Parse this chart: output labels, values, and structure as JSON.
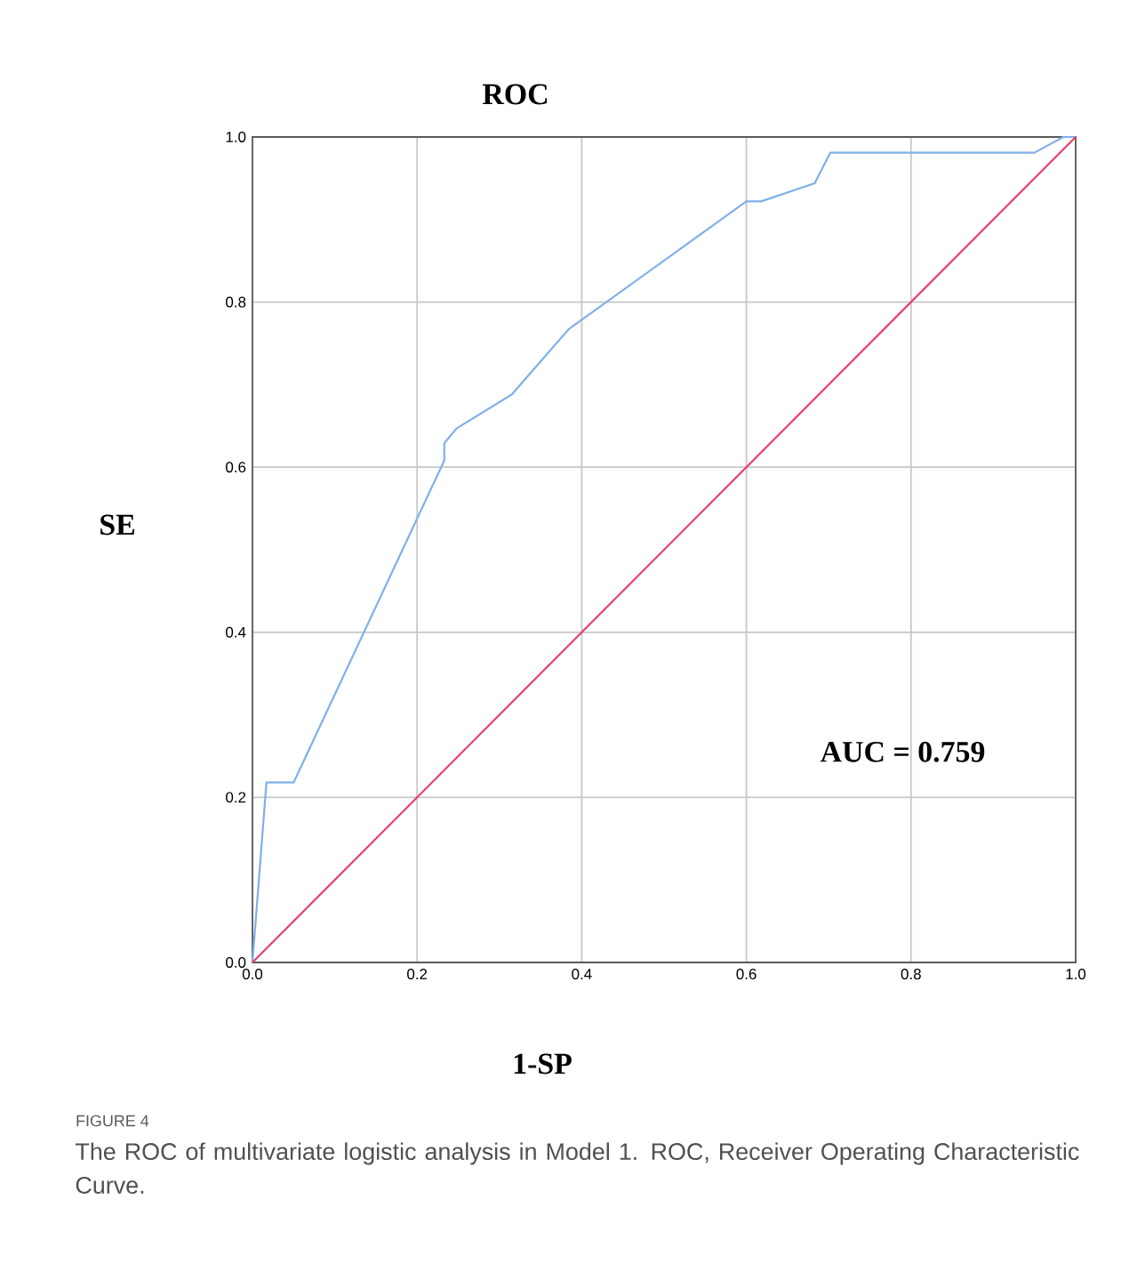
{
  "chart_data": {
    "type": "line",
    "title": "ROC",
    "xlabel": "1-SP",
    "ylabel": "SE",
    "xlim": [
      0,
      1
    ],
    "ylim": [
      0,
      1
    ],
    "xticks": [
      {
        "value": 0,
        "label": "0.0"
      },
      {
        "value": 0.2,
        "label": "0.2"
      },
      {
        "value": 0.4,
        "label": "0.4"
      },
      {
        "value": 0.6,
        "label": "0.6"
      },
      {
        "value": 0.8,
        "label": "0.8"
      },
      {
        "value": 1,
        "label": "1.0"
      }
    ],
    "yticks": [
      {
        "value": 0,
        "label": "0.0"
      },
      {
        "value": 0.2,
        "label": "0.2"
      },
      {
        "value": 0.4,
        "label": "0.4"
      },
      {
        "value": 0.6,
        "label": "0.6"
      },
      {
        "value": 0.8,
        "label": "0.8"
      },
      {
        "value": 1,
        "label": "1.0"
      }
    ],
    "grid": true,
    "marker": "none",
    "series": [
      {
        "color": "#7fb0e8",
        "x": [
          0,
          0.017,
          0.05,
          0.233,
          0.233,
          0.248,
          0.315,
          0.384,
          0.6,
          0.618,
          0.683,
          0.702,
          0.95,
          0.985,
          1
        ],
        "values": [
          0,
          0.218,
          0.218,
          0.608,
          0.629,
          0.647,
          0.688,
          0.767,
          0.922,
          0.922,
          0.944,
          0.981,
          0.981,
          1,
          1
        ]
      },
      {
        "color": "#e8416a",
        "x": [
          0,
          1
        ],
        "values": [
          0,
          1
        ]
      }
    ],
    "annotations": [
      "AUC = 0.759",
      "FIGURE 4",
      "The ROC of multivariate logistic analysis in Model 1. ROC, Receiver Operating Characteristic Curve."
    ]
  }
}
